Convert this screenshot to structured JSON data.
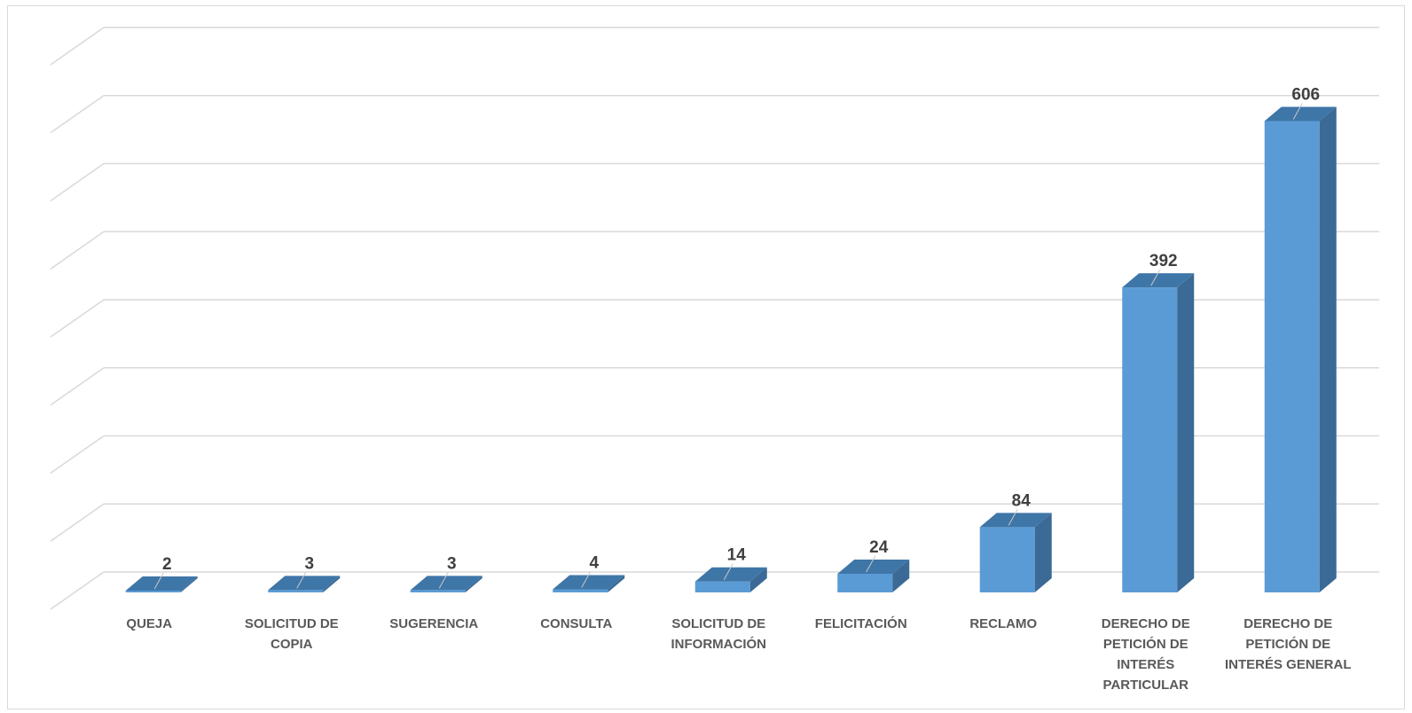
{
  "chart_data": {
    "type": "bar",
    "categories": [
      [
        "QUEJA"
      ],
      [
        "SOLICITUD DE",
        "COPIA"
      ],
      [
        "SUGERENCIA"
      ],
      [
        "CONSULTA"
      ],
      [
        "SOLICITUD DE",
        "INFORMACIÓN"
      ],
      [
        "FELICITACIÓN"
      ],
      [
        "RECLAMO"
      ],
      [
        "DERECHO DE",
        "PETICIÓN DE",
        "INTERÉS",
        "PARTICULAR"
      ],
      [
        "DERECHO DE",
        "PETICIÓN DE",
        "INTERÉS GENERAL"
      ]
    ],
    "values": [
      2,
      3,
      3,
      4,
      14,
      24,
      84,
      392,
      606
    ],
    "data_labels": [
      "2",
      "3",
      "3",
      "4",
      "14",
      "24",
      "84",
      "392",
      "606"
    ],
    "ylim": [
      0,
      700
    ],
    "gridlines": 8,
    "grid": true,
    "legend": "none",
    "colors": {
      "bar_front": "#5b9bd5",
      "bar_side": "#3a6a95",
      "bar_top": "#3f76a8",
      "grid": "#d9d9d9",
      "label_text": "#404040",
      "axis_text": "#595959"
    }
  }
}
